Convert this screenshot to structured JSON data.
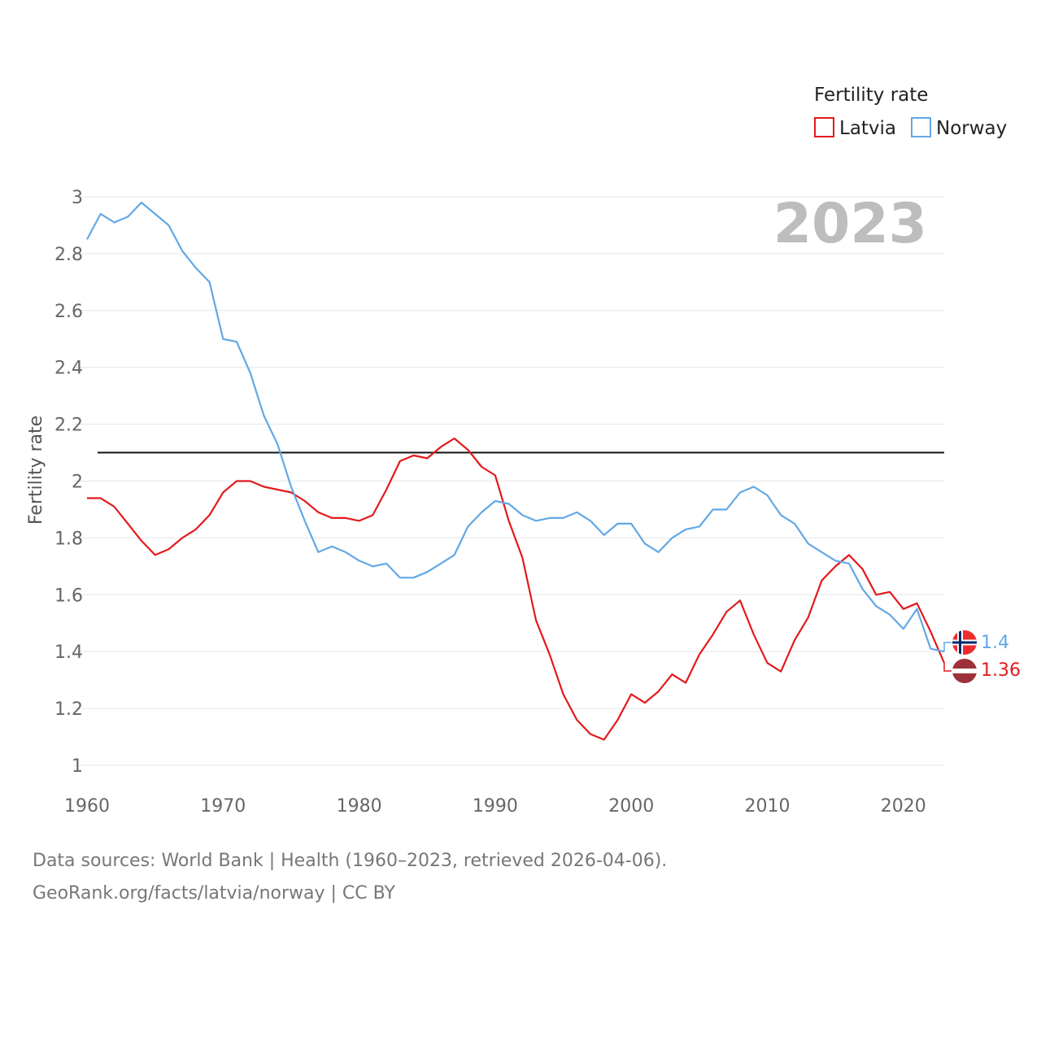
{
  "chart_data": {
    "type": "line",
    "title": "",
    "year_label": "2023",
    "ylabel": "Fertility rate",
    "xlabel": "",
    "xlim": [
      1960,
      2023
    ],
    "ylim": [
      1,
      3
    ],
    "yticks": [
      "1",
      "1.2",
      "1.4",
      "1.6",
      "1.8",
      "2",
      "2.2",
      "2.4",
      "2.6",
      "2.8",
      "3"
    ],
    "xticks": [
      "1960",
      "1970",
      "1980",
      "1990",
      "2000",
      "2010",
      "2020"
    ],
    "reference_line": 2.1,
    "legend": {
      "title": "Fertility rate",
      "placement": "top-right"
    },
    "x": [
      1960,
      1961,
      1962,
      1963,
      1964,
      1965,
      1966,
      1967,
      1968,
      1969,
      1970,
      1971,
      1972,
      1973,
      1974,
      1975,
      1976,
      1977,
      1978,
      1979,
      1980,
      1981,
      1982,
      1983,
      1984,
      1985,
      1986,
      1987,
      1988,
      1989,
      1990,
      1991,
      1992,
      1993,
      1994,
      1995,
      1996,
      1997,
      1998,
      1999,
      2000,
      2001,
      2002,
      2003,
      2004,
      2005,
      2006,
      2007,
      2008,
      2009,
      2010,
      2011,
      2012,
      2013,
      2014,
      2015,
      2016,
      2017,
      2018,
      2019,
      2020,
      2021,
      2022,
      2023
    ],
    "series": [
      {
        "name": "Latvia",
        "color": "#e31a1c",
        "end_label": "1.36",
        "values": [
          1.94,
          1.94,
          1.91,
          1.85,
          1.79,
          1.74,
          1.76,
          1.8,
          1.83,
          1.88,
          1.96,
          2.0,
          2.0,
          1.98,
          1.97,
          1.96,
          1.93,
          1.89,
          1.87,
          1.87,
          1.86,
          1.88,
          1.97,
          2.07,
          2.09,
          2.08,
          2.12,
          2.15,
          2.11,
          2.05,
          2.02,
          1.86,
          1.73,
          1.51,
          1.39,
          1.25,
          1.16,
          1.11,
          1.09,
          1.16,
          1.25,
          1.22,
          1.26,
          1.32,
          1.29,
          1.39,
          1.46,
          1.54,
          1.58,
          1.46,
          1.36,
          1.33,
          1.44,
          1.52,
          1.65,
          1.7,
          1.74,
          1.69,
          1.6,
          1.61,
          1.55,
          1.57,
          1.47,
          1.36
        ]
      },
      {
        "name": "Norway",
        "color": "#62a8e5",
        "end_label": "1.4",
        "values": [
          2.85,
          2.94,
          2.91,
          2.93,
          2.98,
          2.94,
          2.9,
          2.81,
          2.75,
          2.7,
          2.5,
          2.49,
          2.38,
          2.23,
          2.13,
          1.98,
          1.86,
          1.75,
          1.77,
          1.75,
          1.72,
          1.7,
          1.71,
          1.66,
          1.66,
          1.68,
          1.71,
          1.74,
          1.84,
          1.89,
          1.93,
          1.92,
          1.88,
          1.86,
          1.87,
          1.87,
          1.89,
          1.86,
          1.81,
          1.85,
          1.85,
          1.78,
          1.75,
          1.8,
          1.83,
          1.84,
          1.9,
          1.9,
          1.96,
          1.98,
          1.95,
          1.88,
          1.85,
          1.78,
          1.75,
          1.72,
          1.71,
          1.62,
          1.56,
          1.53,
          1.48,
          1.55,
          1.41,
          1.4
        ]
      }
    ],
    "flags": [
      {
        "name": "norway-flag-icon",
        "country": "Norway"
      },
      {
        "name": "latvia-flag-icon",
        "country": "Latvia"
      }
    ]
  },
  "footer": {
    "line1": "Data sources: World Bank | Health (1960–2023, retrieved 2026-04-06).",
    "line2": "GeoRank.org/facts/latvia/norway | CC BY"
  }
}
